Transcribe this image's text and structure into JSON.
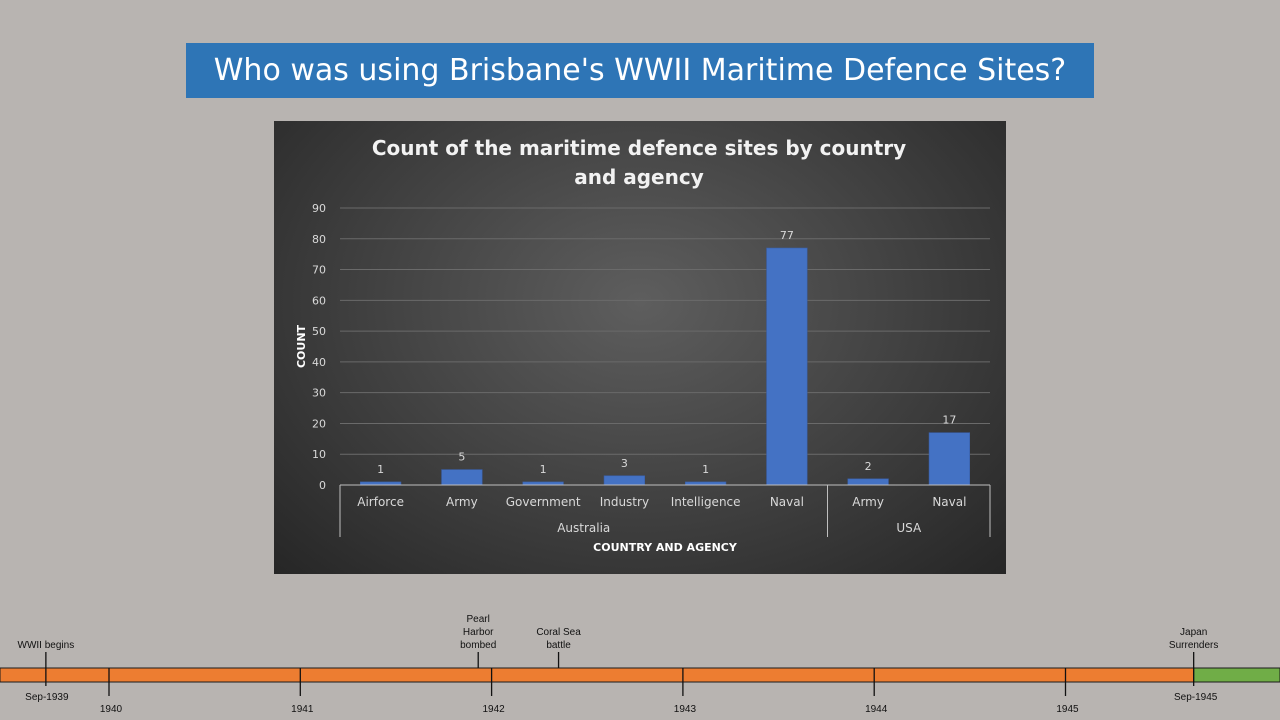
{
  "slide": {
    "title": "Who was using Brisbane's WWII Maritime Defence Sites?"
  },
  "chart_data": {
    "type": "bar",
    "title": "Count of the maritime defence sites by country and agency",
    "title_lines": [
      "Count of the maritime defence sites by country",
      "and agency"
    ],
    "xlabel": "COUNTRY AND AGENCY",
    "ylabel": "COUNT",
    "ylim": [
      0,
      90
    ],
    "yticks": [
      0,
      10,
      20,
      30,
      40,
      50,
      60,
      70,
      80,
      90
    ],
    "grid": true,
    "legend": "none",
    "groups": [
      {
        "name": "Australia",
        "categories": [
          "Airforce",
          "Army",
          "Government",
          "Industry",
          "Intelligence",
          "Naval"
        ],
        "values": [
          1,
          5,
          1,
          3,
          1,
          77
        ]
      },
      {
        "name": "USA",
        "categories": [
          "Army",
          "Naval"
        ],
        "values": [
          2,
          17
        ]
      }
    ],
    "bar_color": "#4472c4"
  },
  "timeline": {
    "years": [
      {
        "label": "1940",
        "year": 1940
      },
      {
        "label": "1941",
        "year": 1941
      },
      {
        "label": "1942",
        "year": 1942
      },
      {
        "label": "1943",
        "year": 1943
      },
      {
        "label": "1944",
        "year": 1944
      },
      {
        "label": "1945",
        "year": 1945
      }
    ],
    "start": {
      "label": "Sep-1939",
      "year": 1939.67
    },
    "end": {
      "label": "Sep-1945",
      "year": 1945.67
    },
    "events": [
      {
        "lines": [
          "WWII begins"
        ],
        "year": 1939.67
      },
      {
        "lines": [
          "Pearl",
          "Harbor",
          "bombed"
        ],
        "year": 1941.93
      },
      {
        "lines": [
          "Coral Sea",
          "battle"
        ],
        "year": 1942.35
      },
      {
        "lines": [
          "Japan",
          "Surrenders"
        ],
        "year": 1945.67
      }
    ],
    "war_color": "#ed7d31",
    "peace_color": "#70ad47"
  }
}
